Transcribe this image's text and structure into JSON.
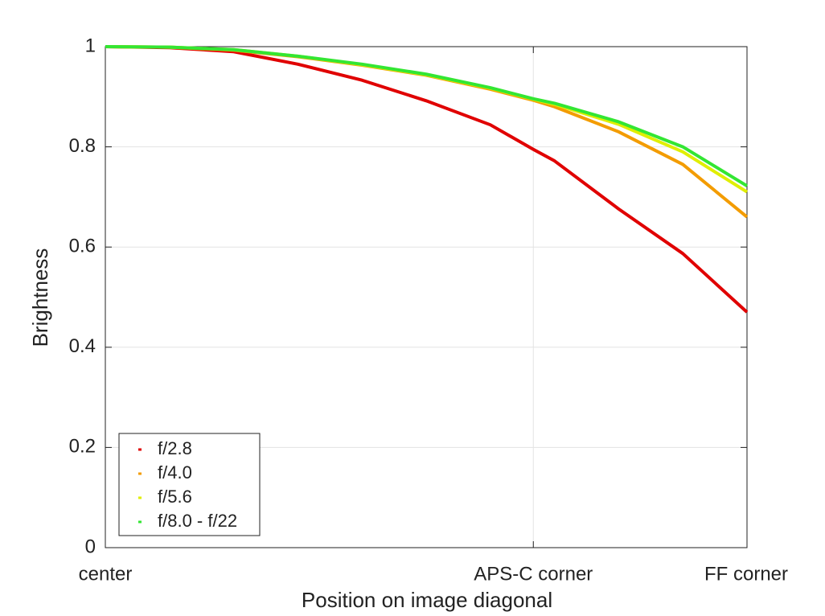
{
  "chart_data": {
    "type": "line",
    "xlabel": "Position on image diagonal",
    "ylabel": "Brightness",
    "x": [
      0,
      0.1,
      0.2,
      0.3,
      0.4,
      0.5,
      0.6,
      0.667,
      0.7,
      0.8,
      0.9,
      1.0
    ],
    "series": [
      {
        "name": "f/2.8",
        "color": "#e00000",
        "values": [
          1.0,
          0.998,
          0.99,
          0.965,
          0.933,
          0.892,
          0.844,
          0.795,
          0.772,
          0.676,
          0.587,
          0.47
        ]
      },
      {
        "name": "f/4.0",
        "color": "#f39c00",
        "values": [
          1.0,
          0.999,
          0.993,
          0.98,
          0.963,
          0.943,
          0.915,
          0.893,
          0.88,
          0.83,
          0.765,
          0.66
        ]
      },
      {
        "name": "f/5.6",
        "color": "#e0ee00",
        "values": [
          1.0,
          0.999,
          0.994,
          0.981,
          0.964,
          0.944,
          0.917,
          0.895,
          0.885,
          0.845,
          0.79,
          0.71
        ]
      },
      {
        "name": "f/8.0 - f/22",
        "color": "#33e633",
        "values": [
          1.0,
          0.999,
          0.994,
          0.981,
          0.965,
          0.945,
          0.918,
          0.896,
          0.887,
          0.85,
          0.8,
          0.722
        ]
      }
    ],
    "xlim": [
      0,
      1
    ],
    "xticks": [
      {
        "value": 0,
        "label": "center"
      },
      {
        "value": 0.667,
        "label": "APS-C corner"
      },
      {
        "value": 1,
        "label": "FF corner"
      }
    ],
    "ylim": [
      0,
      1
    ],
    "yticks": [
      0,
      0.2,
      0.4,
      0.6,
      0.8,
      1
    ],
    "grid": true,
    "legend": "lower left"
  }
}
